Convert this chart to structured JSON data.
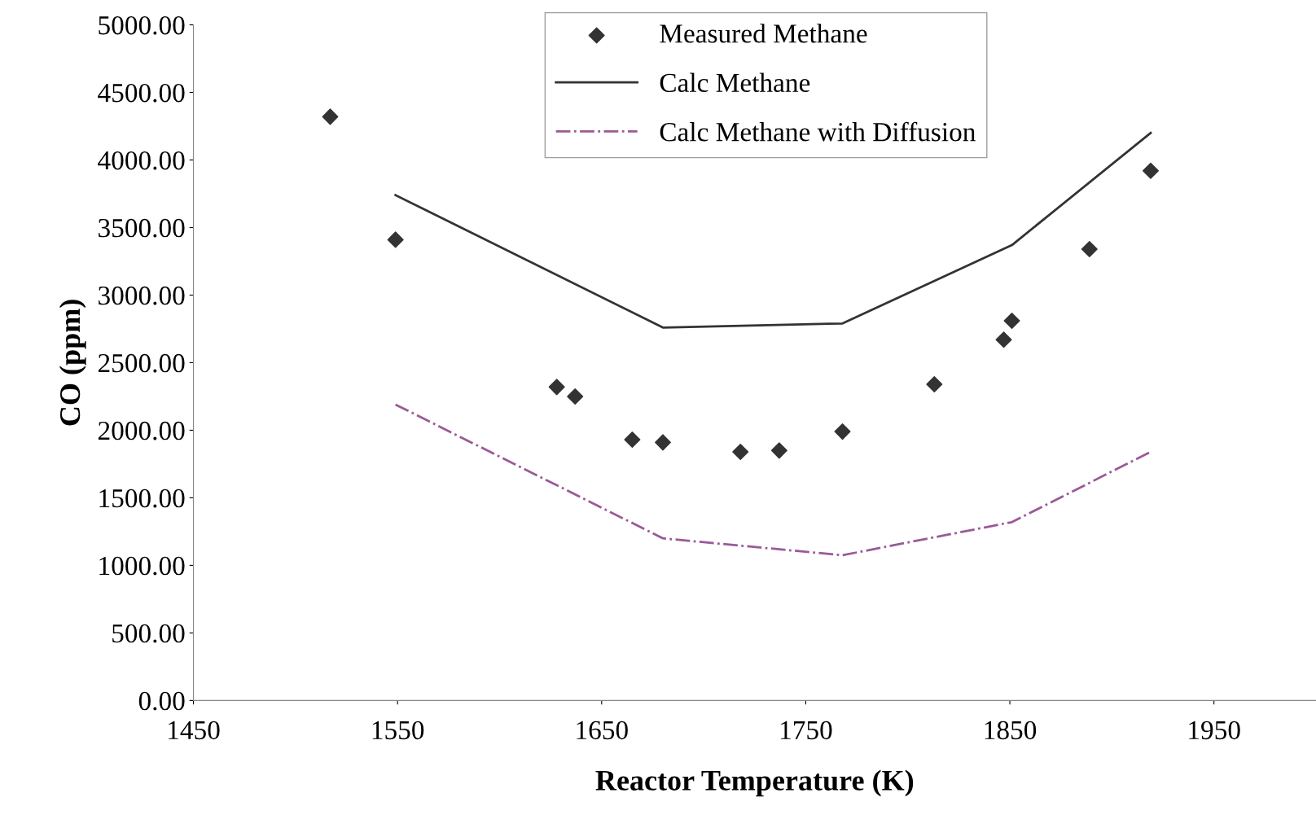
{
  "chart_data": {
    "type": "scatter",
    "xlabel": "Reactor Temperature (K)",
    "ylabel": "CO (ppm)",
    "xlim": [
      1450,
      2000
    ],
    "xticks": [
      1450,
      1550,
      1650,
      1750,
      1850,
      1950
    ],
    "ylim": [
      0,
      5000
    ],
    "yticks": [
      {
        "value": 0,
        "label": "0.00"
      },
      {
        "value": 500,
        "label": "500.00"
      },
      {
        "value": 1000,
        "label": "1000.00"
      },
      {
        "value": 1500,
        "label": "1500.00"
      },
      {
        "value": 2000,
        "label": "2000.00"
      },
      {
        "value": 2500,
        "label": "2500.00"
      },
      {
        "value": 3000,
        "label": "3000.00"
      },
      {
        "value": 3500,
        "label": "3500.00"
      },
      {
        "value": 4000,
        "label": "4000.00"
      },
      {
        "value": 4500,
        "label": "4500.00"
      },
      {
        "value": 5000,
        "label": "5000.00"
      }
    ],
    "grid": false,
    "legend": "top center",
    "series": [
      {
        "name": "Measured Methane",
        "marker": "diamond",
        "color": "#333333",
        "x": [
          1517,
          1549,
          1628,
          1637,
          1665,
          1680,
          1718,
          1737,
          1768,
          1813,
          1847,
          1851,
          1889,
          1919
        ],
        "values": [
          4320,
          3410,
          2320,
          2250,
          1930,
          1910,
          1840,
          1850,
          1990,
          2340,
          2670,
          2810,
          3340,
          3920
        ]
      },
      {
        "name": "Calc Methane",
        "type": "line",
        "line_style": "solid",
        "color": "#333333",
        "x": [
          1549,
          1680,
          1768,
          1851,
          1919
        ],
        "values": [
          3740,
          2760,
          2790,
          3370,
          4200
        ]
      },
      {
        "name": "Calc Methane with Diffusion",
        "type": "line",
        "line_style": "dashdot",
        "color": "#9a5a96",
        "x": [
          1549,
          1680,
          1768,
          1851,
          1919
        ],
        "values": [
          2190,
          1200,
          1075,
          1320,
          1840
        ]
      }
    ]
  }
}
